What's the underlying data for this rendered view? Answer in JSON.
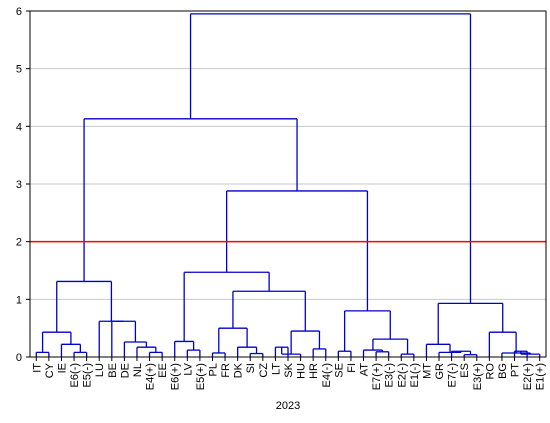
{
  "chart_data": {
    "type": "dendrogram",
    "title": "",
    "xlabel": "2023",
    "ylabel": "",
    "ylim": [
      0,
      6
    ],
    "yticks": [
      "0",
      "1",
      "2",
      "3",
      "4",
      "5",
      "6"
    ],
    "grid": true,
    "leaves": [
      "IT",
      "CY",
      "IE",
      "E6(-)",
      "E5(-)",
      "LU",
      "BE",
      "DE",
      "NL",
      "E4(+)",
      "EE",
      "E6(+)",
      "LV",
      "E5(+)",
      "PL",
      "FR",
      "DK",
      "SI",
      "CZ",
      "LT",
      "SK",
      "HU",
      "HR",
      "E4(-)",
      "SE",
      "FI",
      "AT",
      "E7(+)",
      "E3(-)",
      "E2(-)",
      "E1(-)",
      "MT",
      "GR",
      "E7(-)",
      "ES",
      "E3(+)",
      "RO",
      "BG",
      "PT",
      "E2(+)",
      "E1(+)"
    ],
    "merges": [
      {
        "left": "IT",
        "right": "CY",
        "height": 0.08
      },
      {
        "left": "E6(-)",
        "right": "E5(-)",
        "height": 0.08
      },
      {
        "left": "IE",
        "right": "E6(-)|E5(-)",
        "height": 0.22
      },
      {
        "left": "IT|CY",
        "right": "IE|E6(-)|E5(-)",
        "height": 0.43
      },
      {
        "left": "E4(+)",
        "right": "EE",
        "height": 0.08
      },
      {
        "left": "NL",
        "right": "E4(+)|EE",
        "height": 0.17
      },
      {
        "left": "DE",
        "right": "NL|E4(+)|EE",
        "height": 0.26
      },
      {
        "left": "BE",
        "right": "DE|NL|E4(+)|EE",
        "height": 0.62
      },
      {
        "left": "LU",
        "right": "BE|DE|NL|E4(+)|EE",
        "height": 0.62
      },
      {
        "left": "IT-cluster",
        "right": "LU-cluster",
        "height": 1.31
      },
      {
        "left": "LV",
        "right": "E5(+)",
        "height": 0.12
      },
      {
        "left": "E6(+)",
        "right": "LV|E5(+)",
        "height": 0.27
      },
      {
        "left": "PL",
        "right": "FR",
        "height": 0.07
      },
      {
        "left": "SI",
        "right": "CZ",
        "height": 0.06
      },
      {
        "left": "DK",
        "right": "SI|CZ",
        "height": 0.17
      },
      {
        "left": "PL|FR",
        "right": "DK|SI|CZ",
        "height": 0.5
      },
      {
        "left": "LT",
        "right": "SK",
        "height": 0.17
      },
      {
        "left": "HR",
        "right": "E4(-)",
        "height": 0.14
      },
      {
        "left": "LT|SK",
        "right": "HU",
        "height": 0.05
      },
      {
        "left": "LT|SK|HU",
        "right": "HR|E4(-)",
        "height": 0.45
      },
      {
        "left": "PL-cluster",
        "right": "LT-cluster",
        "height": 1.14
      },
      {
        "left": "E6(+)-cluster",
        "right": "PL-cluster",
        "height": 1.47
      },
      {
        "left": "SE",
        "right": "FI",
        "height": 0.1
      },
      {
        "left": "E7(+)",
        "right": "E3(-)",
        "height": 0.09
      },
      {
        "left": "AT",
        "right": "E7(+)|E3(-)",
        "height": 0.12
      },
      {
        "left": "E2(-)",
        "right": "E1(-)",
        "height": 0.05
      },
      {
        "left": "AT-cluster",
        "right": "E2(-)|E1(-)",
        "height": 0.31
      },
      {
        "left": "SE|FI",
        "right": "AT-cluster",
        "height": 0.8
      },
      {
        "left": "E6(+)-supercluster",
        "right": "SE-cluster",
        "height": 2.88
      },
      {
        "left": "IT-supercluster",
        "right": "E6(+)-supercluster",
        "height": 4.13
      },
      {
        "left": "E7(-)",
        "right": "ES",
        "height": 0.1
      },
      {
        "left": "GR",
        "right": "E7(-)|ES",
        "height": 0.08
      },
      {
        "left": "MT",
        "right": "GR|E7(-)|ES",
        "height": 0.22
      },
      {
        "left": "PT",
        "right": "E2(+)",
        "height": 0.1
      },
      {
        "left": "PT|E2(+)",
        "right": "E1(+)",
        "height": 0.05
      },
      {
        "left": "BG",
        "right": "PT|E2(+)|E1(+)",
        "height": 0.07
      },
      {
        "left": "RO",
        "right": "BG-cluster",
        "height": 0.43
      },
      {
        "left": "MT-cluster",
        "right": "RO-cluster",
        "height": 0.93
      },
      {
        "left": "left-tree",
        "right": "right-tree",
        "height": 5.95
      }
    ],
    "cut_line": {
      "height": 2.0,
      "color": "#ff0000"
    },
    "colors": {
      "tree": "#0000cc",
      "grid": "#c8c8c8",
      "axis": "#000000"
    }
  }
}
